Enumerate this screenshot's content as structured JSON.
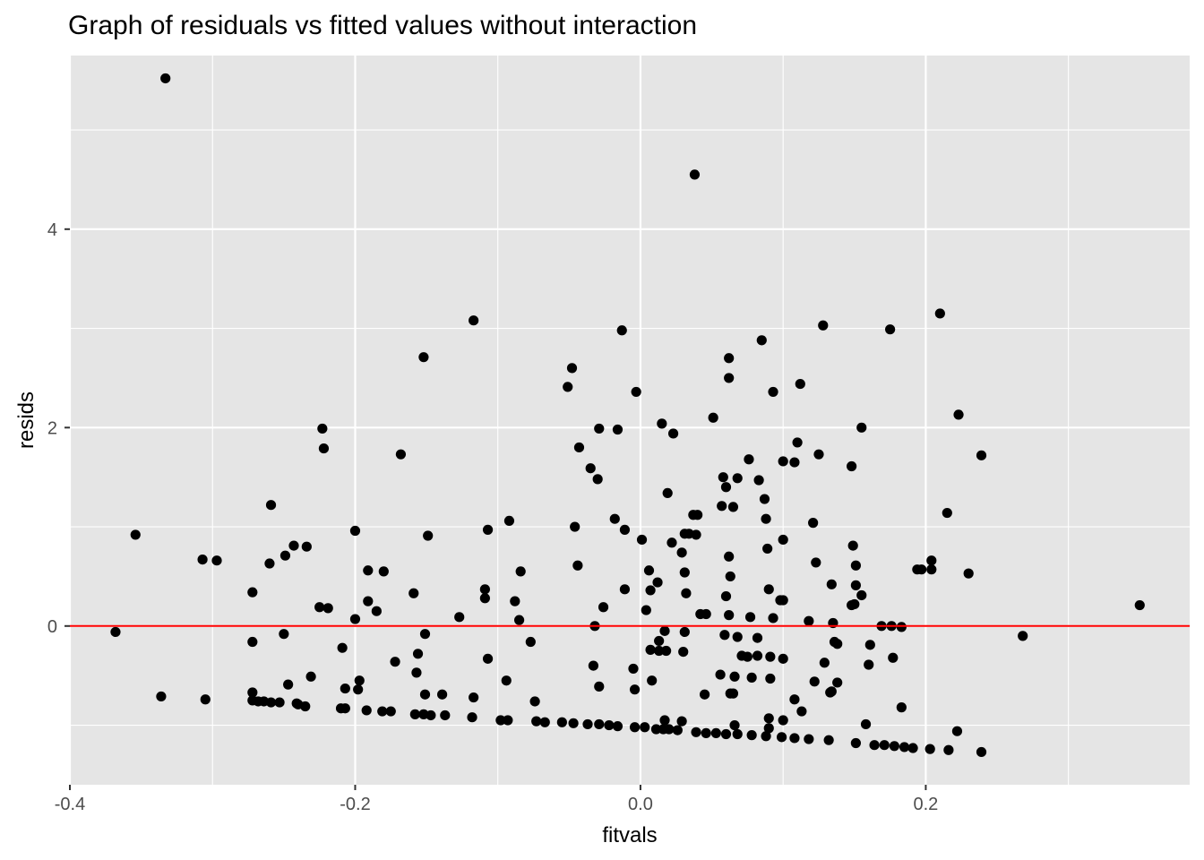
{
  "chart_data": {
    "type": "scatter",
    "title": "Graph of residuals vs fitted values without interaction",
    "xlabel": "fitvals",
    "ylabel": "resids",
    "xlim": [
      -0.4,
      0.385
    ],
    "ylim": [
      -1.6,
      5.75
    ],
    "x_ticks": [
      -0.4,
      -0.2,
      0.0,
      0.2
    ],
    "x_tick_labels": [
      "-0.4",
      "-0.2",
      "0.0",
      "0.2"
    ],
    "y_ticks": [
      0,
      2,
      4
    ],
    "y_tick_labels": [
      "0",
      "2",
      "4"
    ],
    "x_minor_gridlines": [
      -0.3,
      -0.1,
      0.1,
      0.3
    ],
    "y_minor_gridlines": [
      -1,
      1,
      3,
      5
    ],
    "grid": true,
    "reference_line": {
      "y": 0,
      "color": "#ff0000"
    },
    "colors": {
      "panel_background": "#e5e5e5",
      "grid": "#ffffff",
      "points": "#000000"
    },
    "points": [
      [
        -0.333,
        5.52
      ],
      [
        0.038,
        4.55
      ],
      [
        -0.117,
        3.08
      ],
      [
        -0.013,
        2.98
      ],
      [
        0.21,
        3.15
      ],
      [
        0.128,
        3.03
      ],
      [
        0.175,
        2.99
      ],
      [
        0.085,
        2.88
      ],
      [
        -0.152,
        2.71
      ],
      [
        0.062,
        2.7
      ],
      [
        -0.048,
        2.6
      ],
      [
        0.062,
        2.5
      ],
      [
        -0.051,
        2.41
      ],
      [
        -0.003,
        2.36
      ],
      [
        0.093,
        2.36
      ],
      [
        0.112,
        2.44
      ],
      [
        0.051,
        2.1
      ],
      [
        0.223,
        2.13
      ],
      [
        -0.223,
        1.99
      ],
      [
        0.015,
        2.04
      ],
      [
        0.023,
        1.94
      ],
      [
        -0.029,
        1.99
      ],
      [
        -0.016,
        1.98
      ],
      [
        0.155,
        2.0
      ],
      [
        -0.222,
        1.79
      ],
      [
        -0.168,
        1.73
      ],
      [
        0.11,
        1.85
      ],
      [
        -0.043,
        1.8
      ],
      [
        0.125,
        1.73
      ],
      [
        0.239,
        1.72
      ],
      [
        0.076,
        1.68
      ],
      [
        0.1,
        1.66
      ],
      [
        0.108,
        1.65
      ],
      [
        0.148,
        1.61
      ],
      [
        -0.035,
        1.59
      ],
      [
        0.058,
        1.5
      ],
      [
        0.068,
        1.49
      ],
      [
        0.083,
        1.47
      ],
      [
        -0.03,
        1.48
      ],
      [
        0.06,
        1.4
      ],
      [
        0.019,
        1.34
      ],
      [
        0.087,
        1.28
      ],
      [
        -0.259,
        1.22
      ],
      [
        0.057,
        1.21
      ],
      [
        0.065,
        1.2
      ],
      [
        0.215,
        1.14
      ],
      [
        0.037,
        1.12
      ],
      [
        0.04,
        1.12
      ],
      [
        -0.018,
        1.08
      ],
      [
        -0.092,
        1.06
      ],
      [
        0.088,
        1.08
      ],
      [
        0.121,
        1.04
      ],
      [
        -0.046,
        1.0
      ],
      [
        -0.011,
        0.97
      ],
      [
        -0.107,
        0.97
      ],
      [
        -0.2,
        0.96
      ],
      [
        -0.354,
        0.92
      ],
      [
        0.031,
        0.93
      ],
      [
        0.034,
        0.93
      ],
      [
        0.039,
        0.92
      ],
      [
        -0.149,
        0.91
      ],
      [
        0.1,
        0.87
      ],
      [
        0.001,
        0.87
      ],
      [
        0.022,
        0.84
      ],
      [
        -0.243,
        0.81
      ],
      [
        0.149,
        0.81
      ],
      [
        -0.234,
        0.8
      ],
      [
        0.089,
        0.78
      ],
      [
        0.029,
        0.74
      ],
      [
        -0.249,
        0.71
      ],
      [
        0.062,
        0.7
      ],
      [
        -0.307,
        0.67
      ],
      [
        -0.297,
        0.66
      ],
      [
        0.204,
        0.66
      ],
      [
        0.123,
        0.64
      ],
      [
        -0.26,
        0.63
      ],
      [
        -0.044,
        0.61
      ],
      [
        0.151,
        0.61
      ],
      [
        0.194,
        0.57
      ],
      [
        0.197,
        0.57
      ],
      [
        0.204,
        0.57
      ],
      [
        -0.191,
        0.56
      ],
      [
        -0.084,
        0.55
      ],
      [
        0.006,
        0.56
      ],
      [
        -0.18,
        0.55
      ],
      [
        0.031,
        0.54
      ],
      [
        0.23,
        0.53
      ],
      [
        0.063,
        0.5
      ],
      [
        0.012,
        0.44
      ],
      [
        0.134,
        0.42
      ],
      [
        0.151,
        0.41
      ],
      [
        0.09,
        0.37
      ],
      [
        -0.109,
        0.37
      ],
      [
        -0.011,
        0.37
      ],
      [
        0.007,
        0.36
      ],
      [
        0.032,
        0.33
      ],
      [
        -0.272,
        0.34
      ],
      [
        -0.159,
        0.33
      ],
      [
        0.155,
        0.31
      ],
      [
        0.06,
        0.3
      ],
      [
        -0.109,
        0.28
      ],
      [
        0.1,
        0.26
      ],
      [
        0.098,
        0.26
      ],
      [
        -0.191,
        0.25
      ],
      [
        -0.088,
        0.25
      ],
      [
        0.148,
        0.21
      ],
      [
        0.15,
        0.22
      ],
      [
        0.35,
        0.21
      ],
      [
        -0.026,
        0.19
      ],
      [
        -0.225,
        0.19
      ],
      [
        -0.219,
        0.18
      ],
      [
        0.004,
        0.16
      ],
      [
        -0.185,
        0.15
      ],
      [
        0.042,
        0.12
      ],
      [
        0.046,
        0.12
      ],
      [
        0.062,
        0.11
      ],
      [
        0.077,
        0.09
      ],
      [
        0.093,
        0.08
      ],
      [
        -0.127,
        0.09
      ],
      [
        -0.2,
        0.07
      ],
      [
        -0.085,
        0.06
      ],
      [
        0.118,
        0.05
      ],
      [
        0.135,
        0.03
      ],
      [
        -0.032,
        0.0
      ],
      [
        0.169,
        0.0
      ],
      [
        0.176,
        0.0
      ],
      [
        0.183,
        -0.01
      ],
      [
        -0.368,
        -0.06
      ],
      [
        -0.25,
        -0.08
      ],
      [
        -0.151,
        -0.08
      ],
      [
        0.017,
        -0.05
      ],
      [
        0.031,
        -0.06
      ],
      [
        0.059,
        -0.09
      ],
      [
        0.068,
        -0.11
      ],
      [
        0.082,
        -0.12
      ],
      [
        0.268,
        -0.1
      ],
      [
        -0.272,
        -0.16
      ],
      [
        -0.077,
        -0.16
      ],
      [
        0.013,
        -0.15
      ],
      [
        0.136,
        -0.16
      ],
      [
        0.138,
        -0.18
      ],
      [
        0.161,
        -0.19
      ],
      [
        -0.209,
        -0.22
      ],
      [
        0.007,
        -0.24
      ],
      [
        0.013,
        -0.25
      ],
      [
        0.018,
        -0.25
      ],
      [
        0.03,
        -0.26
      ],
      [
        -0.156,
        -0.28
      ],
      [
        0.071,
        -0.3
      ],
      [
        0.075,
        -0.31
      ],
      [
        0.082,
        -0.3
      ],
      [
        0.091,
        -0.31
      ],
      [
        0.1,
        -0.33
      ],
      [
        0.177,
        -0.32
      ],
      [
        -0.107,
        -0.33
      ],
      [
        -0.172,
        -0.36
      ],
      [
        0.129,
        -0.37
      ],
      [
        -0.033,
        -0.4
      ],
      [
        0.16,
        -0.39
      ],
      [
        -0.005,
        -0.43
      ],
      [
        -0.157,
        -0.47
      ],
      [
        -0.231,
        -0.51
      ],
      [
        0.056,
        -0.49
      ],
      [
        0.066,
        -0.51
      ],
      [
        0.078,
        -0.52
      ],
      [
        0.091,
        -0.53
      ],
      [
        0.122,
        -0.56
      ],
      [
        -0.197,
        -0.55
      ],
      [
        -0.094,
        -0.55
      ],
      [
        0.008,
        -0.55
      ],
      [
        0.138,
        -0.57
      ],
      [
        -0.247,
        -0.59
      ],
      [
        -0.029,
        -0.61
      ],
      [
        -0.207,
        -0.63
      ],
      [
        -0.198,
        -0.64
      ],
      [
        -0.004,
        -0.64
      ],
      [
        0.063,
        -0.68
      ],
      [
        0.065,
        -0.68
      ],
      [
        0.134,
        -0.66
      ],
      [
        0.133,
        -0.67
      ],
      [
        -0.272,
        -0.67
      ],
      [
        -0.336,
        -0.71
      ],
      [
        -0.151,
        -0.69
      ],
      [
        -0.139,
        -0.69
      ],
      [
        0.045,
        -0.69
      ],
      [
        -0.305,
        -0.74
      ],
      [
        -0.117,
        -0.72
      ],
      [
        0.108,
        -0.74
      ],
      [
        -0.074,
        -0.76
      ],
      [
        -0.272,
        -0.75
      ],
      [
        -0.268,
        -0.76
      ],
      [
        -0.264,
        -0.76
      ],
      [
        -0.259,
        -0.77
      ],
      [
        -0.253,
        -0.77
      ],
      [
        -0.241,
        -0.78
      ],
      [
        -0.24,
        -0.79
      ],
      [
        -0.235,
        -0.81
      ],
      [
        -0.21,
        -0.83
      ],
      [
        -0.207,
        -0.83
      ],
      [
        -0.192,
        -0.85
      ],
      [
        0.183,
        -0.82
      ],
      [
        -0.181,
        -0.86
      ],
      [
        -0.175,
        -0.86
      ],
      [
        -0.158,
        -0.89
      ],
      [
        -0.152,
        -0.89
      ],
      [
        -0.147,
        -0.9
      ],
      [
        -0.137,
        -0.9
      ],
      [
        0.113,
        -0.86
      ],
      [
        -0.118,
        -0.92
      ],
      [
        -0.098,
        -0.95
      ],
      [
        -0.093,
        -0.95
      ],
      [
        -0.073,
        -0.96
      ],
      [
        -0.067,
        -0.97
      ],
      [
        -0.055,
        -0.97
      ],
      [
        -0.047,
        -0.98
      ],
      [
        -0.037,
        -0.99
      ],
      [
        -0.029,
        -0.99
      ],
      [
        -0.022,
        -1.0
      ],
      [
        -0.016,
        -1.01
      ],
      [
        -0.004,
        -1.02
      ],
      [
        0.003,
        -1.02
      ],
      [
        0.011,
        -1.04
      ],
      [
        0.016,
        -1.04
      ],
      [
        0.02,
        -1.04
      ],
      [
        0.026,
        -1.05
      ],
      [
        0.039,
        -1.07
      ],
      [
        0.046,
        -1.08
      ],
      [
        0.053,
        -1.08
      ],
      [
        0.06,
        -1.09
      ],
      [
        0.068,
        -1.09
      ],
      [
        0.078,
        -1.1
      ],
      [
        0.088,
        -1.11
      ],
      [
        0.099,
        -1.12
      ],
      [
        0.108,
        -1.13
      ],
      [
        0.118,
        -1.14
      ],
      [
        0.132,
        -1.15
      ],
      [
        0.151,
        -1.18
      ],
      [
        0.164,
        -1.2
      ],
      [
        0.171,
        -1.2
      ],
      [
        0.178,
        -1.21
      ],
      [
        0.185,
        -1.22
      ],
      [
        0.191,
        -1.23
      ],
      [
        0.203,
        -1.24
      ],
      [
        0.216,
        -1.25
      ],
      [
        0.239,
        -1.27
      ],
      [
        0.222,
        -1.06
      ],
      [
        0.158,
        -0.99
      ],
      [
        0.09,
        -0.93
      ],
      [
        0.1,
        -0.95
      ],
      [
        0.017,
        -0.95
      ],
      [
        0.029,
        -0.96
      ],
      [
        0.066,
        -1.0
      ],
      [
        0.09,
        -1.03
      ]
    ]
  }
}
